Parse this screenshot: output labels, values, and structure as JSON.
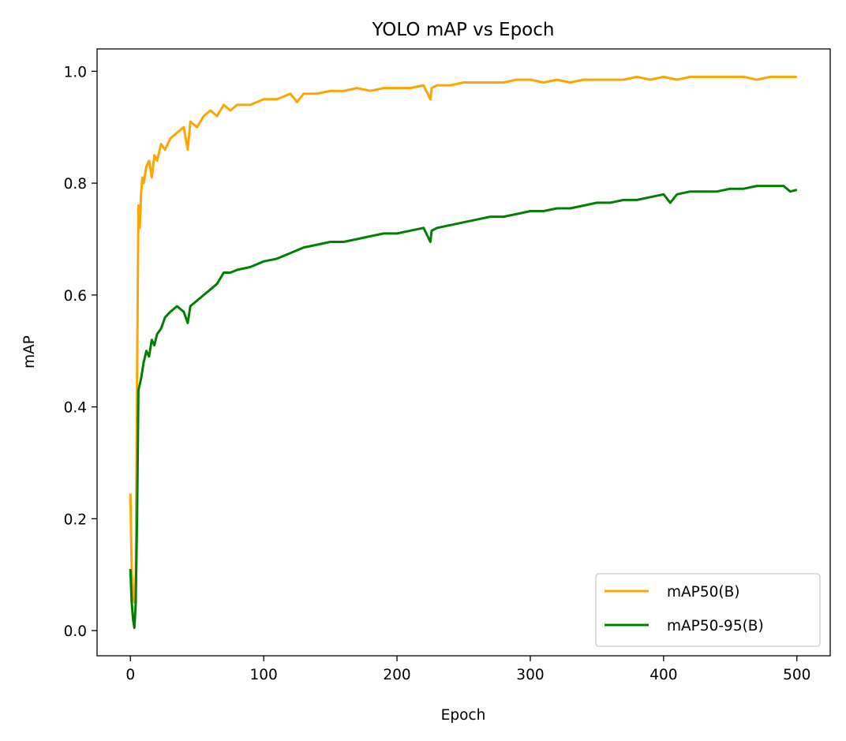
{
  "chart_data": {
    "type": "line",
    "title": "YOLO mAP vs Epoch",
    "xlabel": "Epoch",
    "ylabel": "mAP",
    "xlim": [
      -25,
      525
    ],
    "ylim": [
      -0.045,
      1.04
    ],
    "x_ticks": [
      0,
      100,
      200,
      300,
      400,
      500
    ],
    "x_tick_labels": [
      "0",
      "100",
      "200",
      "300",
      "400",
      "500"
    ],
    "y_ticks": [
      0.0,
      0.2,
      0.4,
      0.6,
      0.8,
      1.0
    ],
    "y_tick_labels": [
      "0.0",
      "0.2",
      "0.4",
      "0.6",
      "0.8",
      "1.0"
    ],
    "grid": false,
    "legend_position": "lower-right",
    "series": [
      {
        "name": "mAP50(B)",
        "color": "#ffa500",
        "x": [
          0,
          1,
          2,
          3,
          4,
          5,
          6,
          7,
          8,
          9,
          10,
          12,
          14,
          16,
          18,
          20,
          23,
          26,
          30,
          35,
          40,
          43,
          45,
          50,
          55,
          60,
          65,
          70,
          75,
          80,
          90,
          100,
          110,
          120,
          125,
          130,
          140,
          150,
          160,
          170,
          180,
          190,
          200,
          210,
          220,
          225,
          226,
          230,
          240,
          250,
          260,
          270,
          280,
          290,
          300,
          310,
          320,
          330,
          340,
          350,
          360,
          370,
          380,
          390,
          400,
          410,
          420,
          430,
          440,
          450,
          460,
          470,
          480,
          490,
          500
        ],
        "values": [
          0.245,
          0.11,
          0.06,
          0.05,
          0.1,
          0.45,
          0.76,
          0.72,
          0.78,
          0.81,
          0.8,
          0.83,
          0.84,
          0.81,
          0.85,
          0.84,
          0.87,
          0.86,
          0.88,
          0.89,
          0.9,
          0.86,
          0.91,
          0.9,
          0.92,
          0.93,
          0.92,
          0.94,
          0.93,
          0.94,
          0.94,
          0.95,
          0.95,
          0.96,
          0.945,
          0.96,
          0.96,
          0.965,
          0.965,
          0.97,
          0.965,
          0.97,
          0.97,
          0.97,
          0.975,
          0.95,
          0.97,
          0.975,
          0.975,
          0.98,
          0.98,
          0.98,
          0.98,
          0.985,
          0.985,
          0.98,
          0.985,
          0.98,
          0.985,
          0.985,
          0.985,
          0.985,
          0.99,
          0.985,
          0.99,
          0.985,
          0.99,
          0.99,
          0.99,
          0.99,
          0.99,
          0.985,
          0.99,
          0.99,
          0.99
        ]
      },
      {
        "name": "mAP50-95(B)",
        "color": "#008000",
        "x": [
          0,
          1,
          2,
          3,
          4,
          5,
          6,
          7,
          8,
          10,
          12,
          14,
          16,
          18,
          20,
          23,
          26,
          30,
          35,
          40,
          43,
          45,
          50,
          55,
          60,
          65,
          70,
          75,
          80,
          90,
          100,
          110,
          120,
          130,
          140,
          150,
          160,
          170,
          180,
          190,
          200,
          210,
          220,
          225,
          226,
          230,
          240,
          250,
          260,
          270,
          280,
          290,
          300,
          310,
          320,
          330,
          340,
          350,
          360,
          370,
          380,
          390,
          400,
          405,
          410,
          420,
          430,
          440,
          450,
          460,
          470,
          480,
          490,
          495,
          500
        ],
        "values": [
          0.11,
          0.05,
          0.02,
          0.005,
          0.05,
          0.2,
          0.43,
          0.44,
          0.45,
          0.48,
          0.5,
          0.49,
          0.52,
          0.51,
          0.53,
          0.54,
          0.56,
          0.57,
          0.58,
          0.57,
          0.55,
          0.58,
          0.59,
          0.6,
          0.61,
          0.62,
          0.64,
          0.64,
          0.645,
          0.65,
          0.66,
          0.665,
          0.675,
          0.685,
          0.69,
          0.695,
          0.695,
          0.7,
          0.705,
          0.71,
          0.71,
          0.715,
          0.72,
          0.695,
          0.715,
          0.72,
          0.725,
          0.73,
          0.735,
          0.74,
          0.74,
          0.745,
          0.75,
          0.75,
          0.755,
          0.755,
          0.76,
          0.765,
          0.765,
          0.77,
          0.77,
          0.775,
          0.78,
          0.765,
          0.78,
          0.785,
          0.785,
          0.785,
          0.79,
          0.79,
          0.795,
          0.795,
          0.795,
          0.785,
          0.788
        ]
      }
    ]
  }
}
